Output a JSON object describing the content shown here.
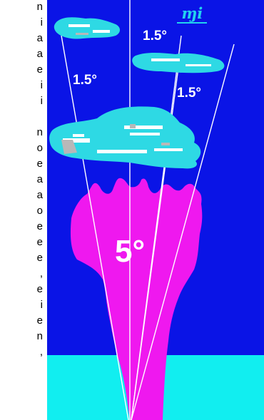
{
  "text_column": {
    "fragments": [
      "n",
      "i",
      "a",
      "a",
      "e",
      "i",
      "i",
      "",
      "n",
      "o",
      "e",
      "a",
      "a",
      "o",
      "e",
      "e",
      "e",
      ",",
      "e",
      "i",
      "e",
      "n",
      ","
    ]
  },
  "labels": {
    "beam_top": "1.5°",
    "beam_left": "1.5°",
    "beam_right": "1.5°",
    "beam_center": "5°"
  },
  "logo": "ɱi",
  "colors": {
    "water": "#0a14e6",
    "seafloor": "#11eef0",
    "beam_cone": "#ef18ef",
    "fish_school": "#2ed9e4",
    "beam_lines": "#ffffff"
  }
}
